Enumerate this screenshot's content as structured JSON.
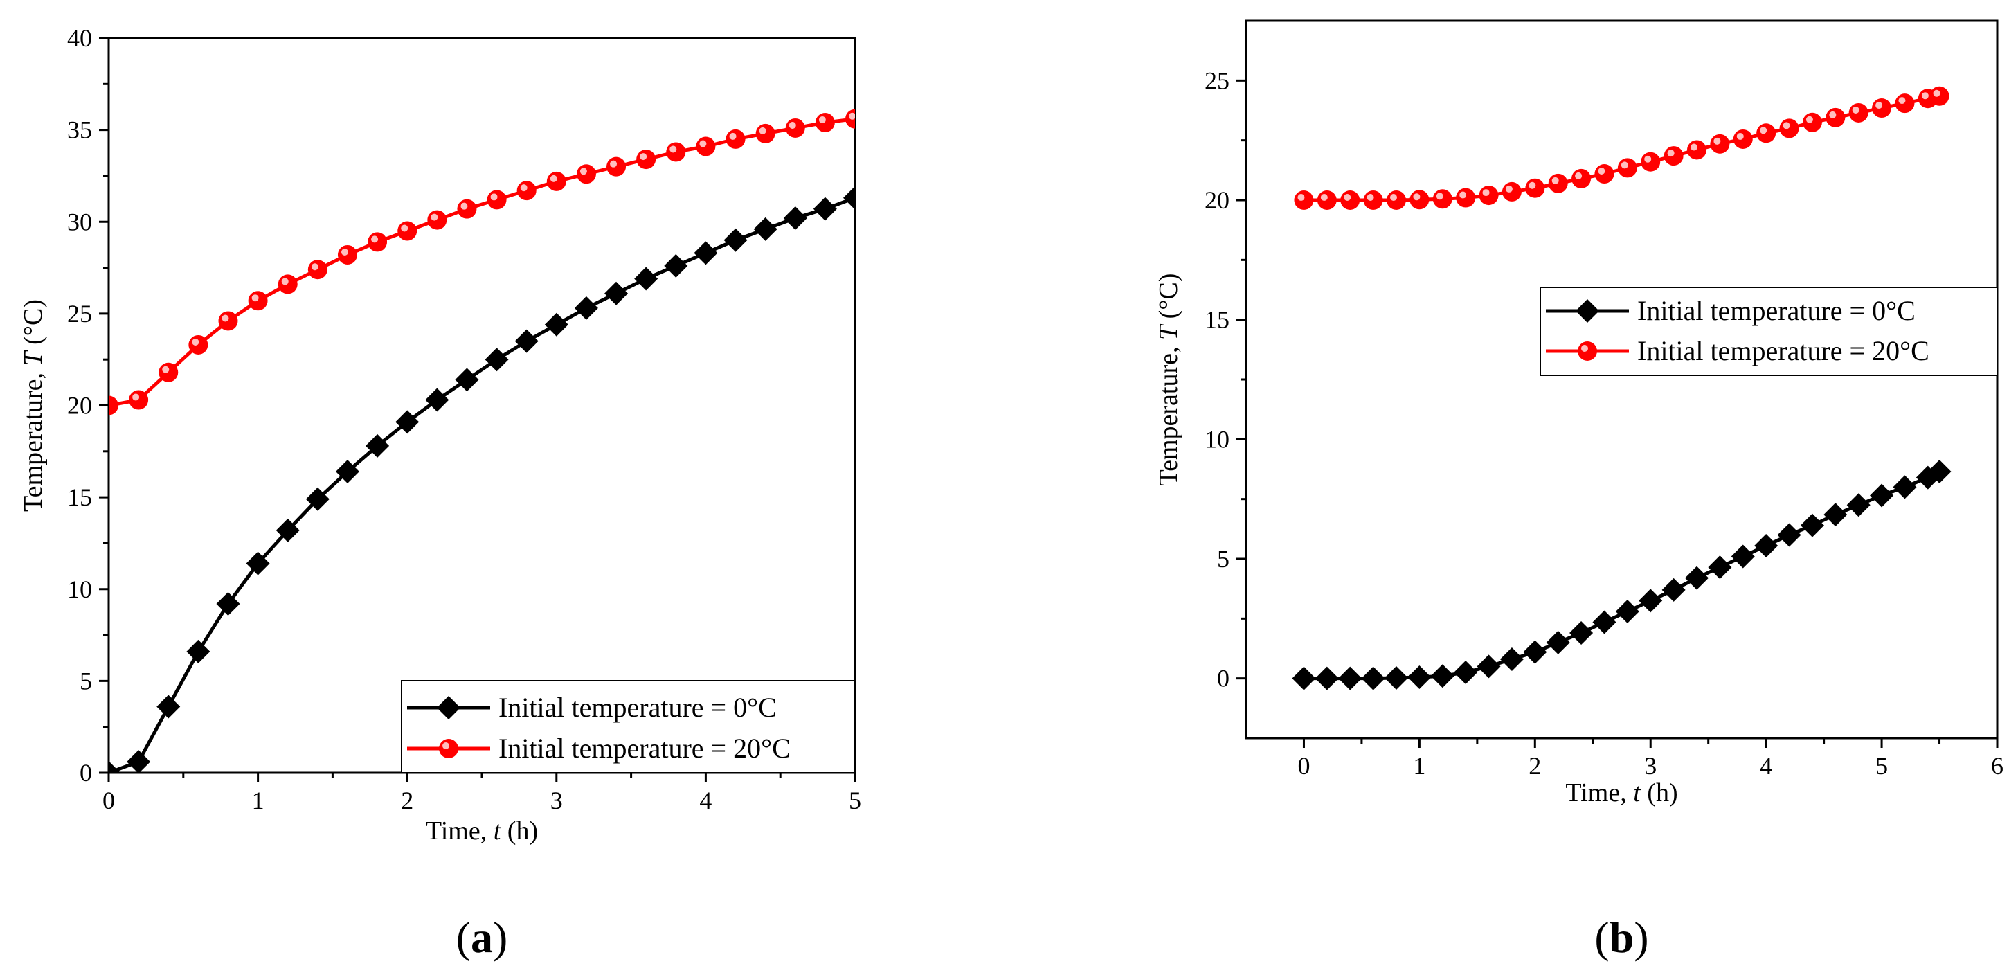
{
  "chart_data": [
    {
      "type": "line",
      "panel_label": {
        "open": "(",
        "letter": "a",
        "close": ")"
      },
      "xlabel": {
        "prefix": "Time, ",
        "var": "t",
        "suffix": " (h)"
      },
      "ylabel": {
        "prefix": "Temperature, ",
        "var": "T",
        "suffix": " (°C)"
      },
      "xlim": [
        0,
        5
      ],
      "ylim": [
        0,
        40
      ],
      "xticks": [
        0,
        1,
        2,
        3,
        4,
        5
      ],
      "yticks": [
        0,
        5,
        10,
        15,
        20,
        25,
        30,
        35,
        40
      ],
      "legend_position": "bottom-right",
      "series": [
        {
          "name": "Initial temperature = 0°C",
          "color": "#000000",
          "marker": "diamond",
          "x": [
            0,
            0.2,
            0.4,
            0.6,
            0.8,
            1.0,
            1.2,
            1.4,
            1.6,
            1.8,
            2.0,
            2.2,
            2.4,
            2.6,
            2.8,
            3.0,
            3.2,
            3.4,
            3.6,
            3.8,
            4.0,
            4.2,
            4.4,
            4.6,
            4.8,
            5.0
          ],
          "y": [
            0,
            0.6,
            3.6,
            6.6,
            9.2,
            11.4,
            13.2,
            14.9,
            16.4,
            17.8,
            19.1,
            20.3,
            21.4,
            22.5,
            23.5,
            24.4,
            25.3,
            26.1,
            26.9,
            27.6,
            28.3,
            29.0,
            29.6,
            30.2,
            30.7,
            31.3
          ]
        },
        {
          "name": "Initial temperature = 20°C",
          "color": "#ff0000",
          "marker": "circle",
          "x": [
            0,
            0.2,
            0.4,
            0.6,
            0.8,
            1.0,
            1.2,
            1.4,
            1.6,
            1.8,
            2.0,
            2.2,
            2.4,
            2.6,
            2.8,
            3.0,
            3.2,
            3.4,
            3.6,
            3.8,
            4.0,
            4.2,
            4.4,
            4.6,
            4.8,
            5.0
          ],
          "y": [
            20.0,
            20.3,
            21.8,
            23.3,
            24.6,
            25.7,
            26.6,
            27.4,
            28.2,
            28.9,
            29.5,
            30.1,
            30.7,
            31.2,
            31.7,
            32.2,
            32.6,
            33.0,
            33.4,
            33.8,
            34.1,
            34.5,
            34.8,
            35.1,
            35.4,
            35.6
          ]
        }
      ]
    },
    {
      "type": "line",
      "panel_label": {
        "open": "(",
        "letter": "b",
        "close": ")"
      },
      "xlabel": {
        "prefix": "Time, ",
        "var": "t",
        "suffix": " (h)"
      },
      "ylabel": {
        "prefix": "Temperature, ",
        "var": "T",
        "suffix": " (°C)"
      },
      "xlim": [
        -0.5,
        6
      ],
      "ylim": [
        -2.5,
        27.5
      ],
      "xticks": [
        0,
        1,
        2,
        3,
        4,
        5,
        6
      ],
      "yticks": [
        0,
        5,
        10,
        15,
        20,
        25
      ],
      "legend_position": "center-right",
      "series": [
        {
          "name": "Initial temperature = 0°C",
          "color": "#000000",
          "marker": "diamond",
          "x": [
            0,
            0.2,
            0.4,
            0.6,
            0.8,
            1.0,
            1.2,
            1.4,
            1.6,
            1.8,
            2.0,
            2.2,
            2.4,
            2.6,
            2.8,
            3.0,
            3.2,
            3.4,
            3.6,
            3.8,
            4.0,
            4.2,
            4.4,
            4.6,
            4.8,
            5.0,
            5.2,
            5.4,
            5.5
          ],
          "y": [
            0,
            0,
            0,
            0,
            0.02,
            0.05,
            0.1,
            0.25,
            0.5,
            0.8,
            1.1,
            1.5,
            1.9,
            2.35,
            2.8,
            3.25,
            3.7,
            4.2,
            4.65,
            5.1,
            5.55,
            6.0,
            6.4,
            6.85,
            7.25,
            7.65,
            8.0,
            8.4,
            8.65
          ]
        },
        {
          "name": "Initial temperature = 20°C",
          "color": "#ff0000",
          "marker": "circle",
          "x": [
            0,
            0.2,
            0.4,
            0.6,
            0.8,
            1.0,
            1.2,
            1.4,
            1.6,
            1.8,
            2.0,
            2.2,
            2.4,
            2.6,
            2.8,
            3.0,
            3.2,
            3.4,
            3.6,
            3.8,
            4.0,
            4.2,
            4.4,
            4.6,
            4.8,
            5.0,
            5.2,
            5.4,
            5.5
          ],
          "y": [
            20.0,
            20.0,
            20.0,
            20.0,
            20.0,
            20.02,
            20.05,
            20.1,
            20.2,
            20.35,
            20.5,
            20.7,
            20.9,
            21.1,
            21.35,
            21.6,
            21.85,
            22.1,
            22.35,
            22.55,
            22.8,
            23.0,
            23.25,
            23.45,
            23.65,
            23.85,
            24.05,
            24.25,
            24.35
          ]
        }
      ]
    }
  ]
}
